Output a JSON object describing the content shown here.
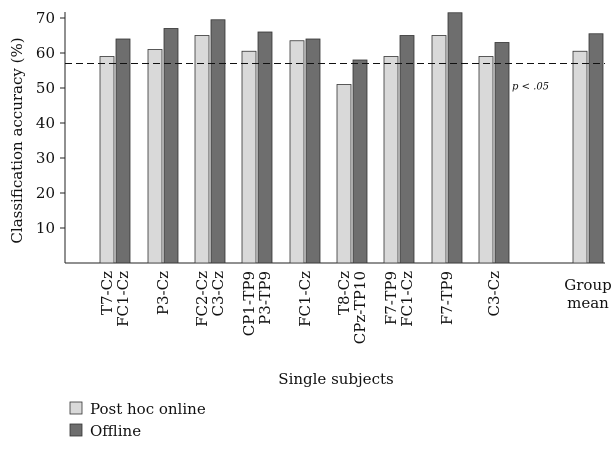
{
  "chart_data": {
    "type": "bar",
    "ylabel": "Classification accuracy (%)",
    "xlabel": "Single subjects",
    "ylim": [
      0,
      70
    ],
    "yticks": [
      10,
      20,
      30,
      40,
      50,
      60,
      70
    ],
    "grid": false,
    "legend_position": "bottom-left",
    "categories": [
      [
        "T7-Cz",
        "FC1-Cz"
      ],
      [
        "P3-Cz"
      ],
      [
        "FC2-Cz",
        "C3-Cz"
      ],
      [
        "CP1-TP9",
        "P3-TP9"
      ],
      [
        "FC1-Cz"
      ],
      [
        "T8-Cz",
        "CPz-TP10"
      ],
      [
        "F7-TP9",
        "FC1-Cz"
      ],
      [
        "F7-TP9"
      ],
      [
        "C3-Cz"
      ],
      [
        "Group",
        "mean"
      ]
    ],
    "series": [
      {
        "name": "Post hoc online",
        "color": "#d9d9d9",
        "values": [
          59,
          61,
          65,
          60.5,
          63.5,
          51,
          59,
          65,
          59,
          60.5
        ]
      },
      {
        "name": "Offline",
        "color": "#6e6e6e",
        "values": [
          64,
          67,
          69.5,
          66,
          64,
          58,
          65,
          71.5,
          63,
          65.5
        ]
      }
    ],
    "threshold": {
      "value": 57,
      "label": "p < .05",
      "style": "dashed"
    }
  }
}
